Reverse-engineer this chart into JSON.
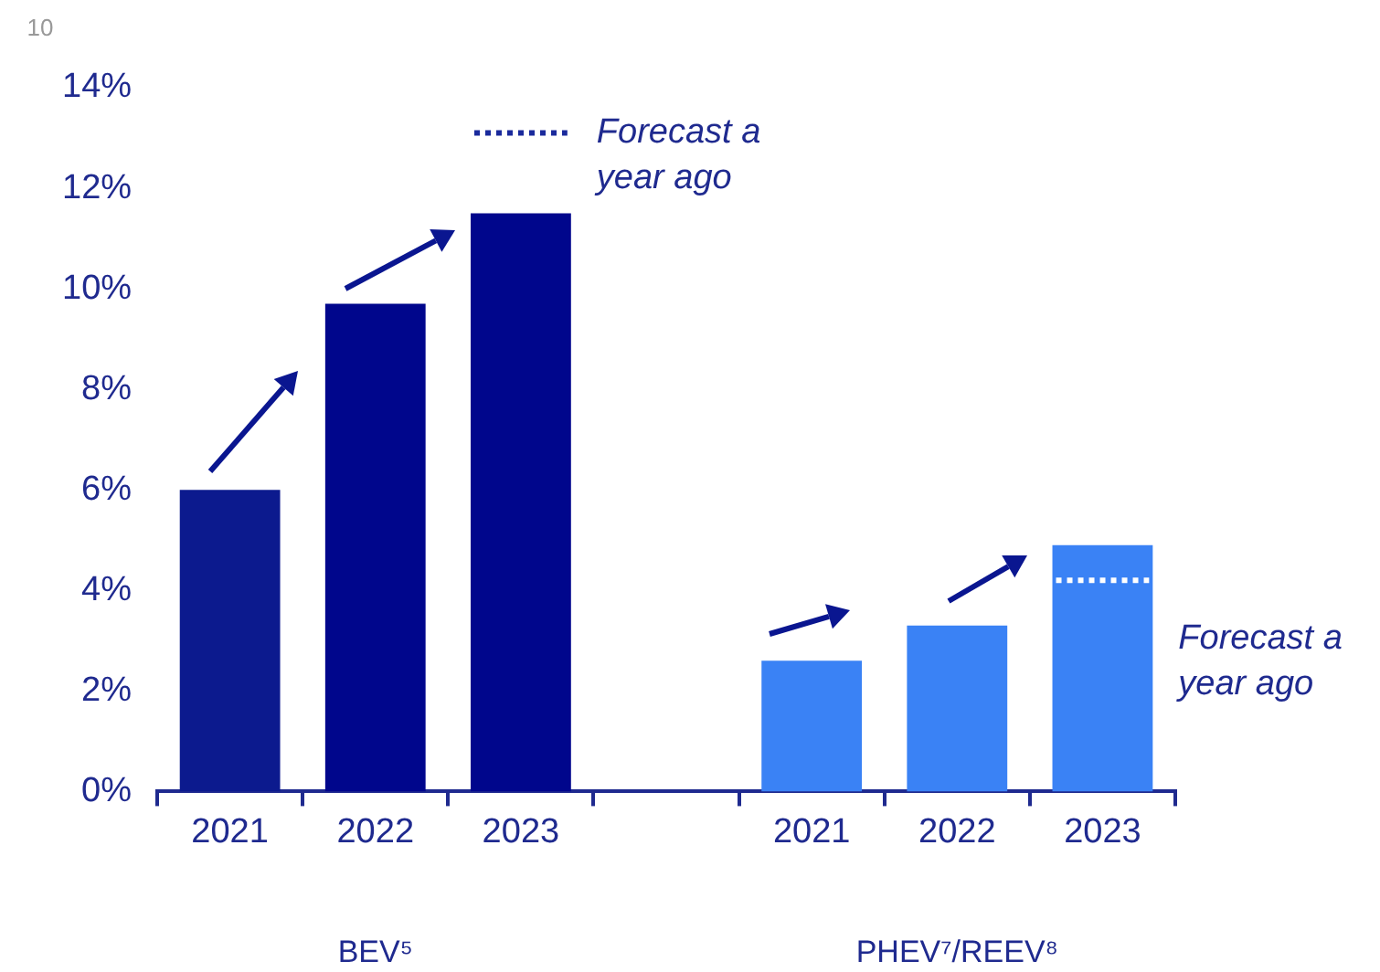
{
  "chart_data": {
    "type": "bar",
    "categories": [
      "2021",
      "2022",
      "2023",
      null,
      "2021",
      "2022",
      "2023"
    ],
    "values": [
      6.0,
      9.7,
      11.5,
      null,
      2.6,
      3.3,
      4.9
    ],
    "colors": [
      "#0c1a8e",
      "#00068c",
      "#00068c",
      null,
      "#3a82f5",
      "#3a82f5",
      "#3a82f5"
    ],
    "ref_lines": [
      {
        "axis": "y",
        "value": 13.1,
        "label": "Forecast a year ago",
        "color": "#1a2a9c",
        "line_style": "dotted"
      },
      {
        "axis": "y",
        "value": 4.2,
        "label": "Forecast a year ago",
        "color": "#ffffff",
        "line_style": "dotted"
      }
    ],
    "ylim": [
      0,
      14
    ],
    "yticks": [
      {
        "value": 0,
        "label": "0%"
      },
      {
        "value": 2,
        "label": "2%"
      },
      {
        "value": 4,
        "label": "4%"
      },
      {
        "value": 6,
        "label": "6%"
      },
      {
        "value": 8,
        "label": "8%"
      },
      {
        "value": 10,
        "label": "10%"
      },
      {
        "value": 12,
        "label": "12%"
      },
      {
        "value": 14,
        "label": "14%"
      }
    ],
    "grid": false,
    "legend": false,
    "annotations": [
      "BEV⁵",
      "PHEV⁷/REEV⁸",
      "10"
    ]
  }
}
